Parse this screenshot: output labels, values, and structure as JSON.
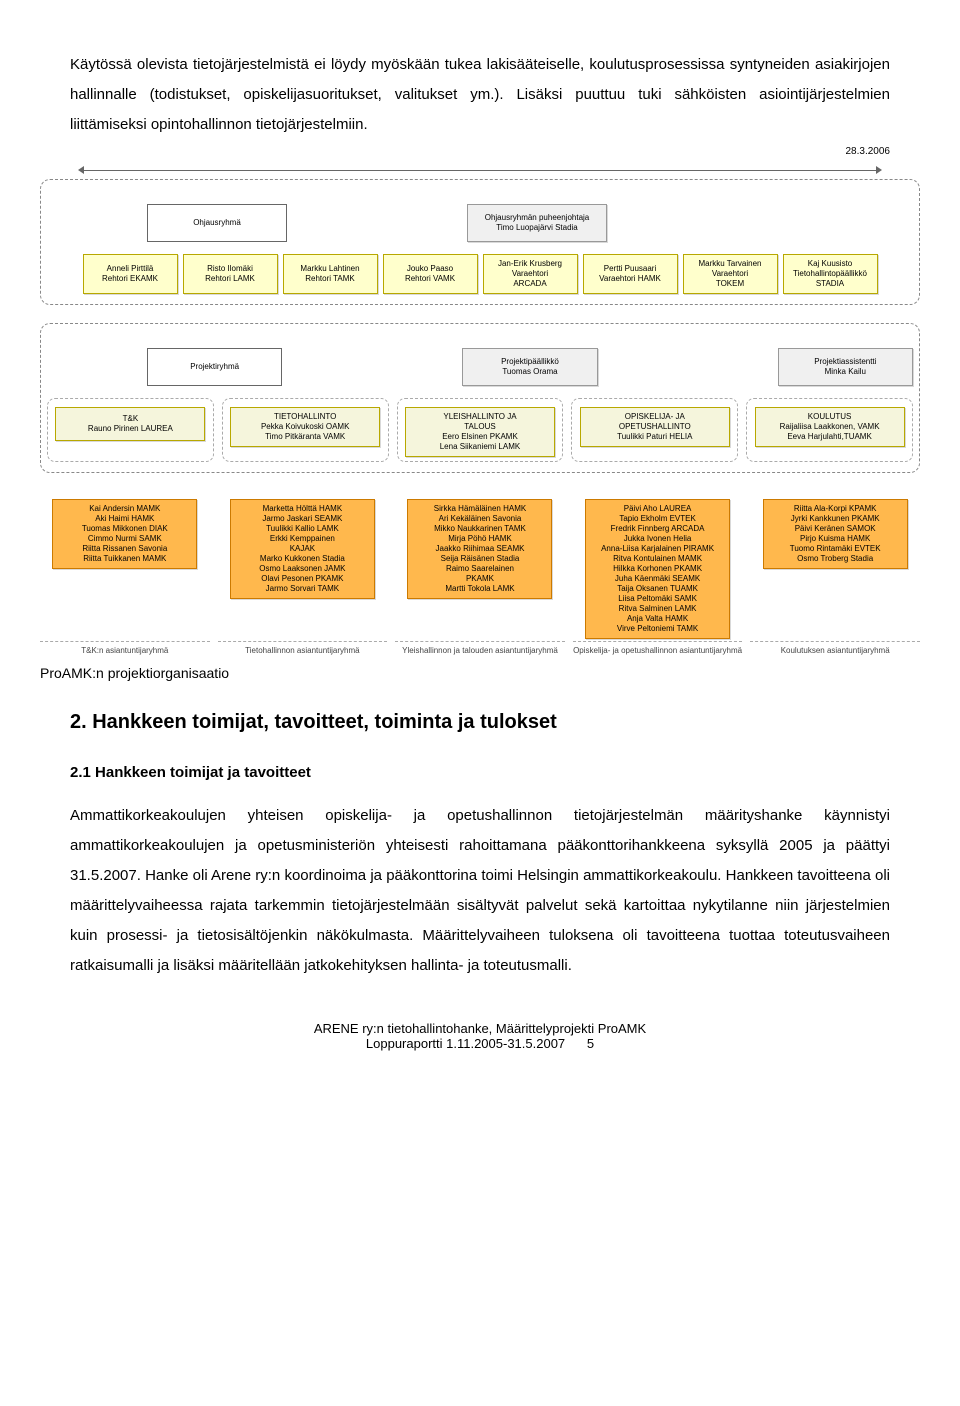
{
  "intro": {
    "p1": "Käytössä olevista tietojärjestelmistä ei löydy myöskään tukea lakisääteiselle, koulutusprosessissa syntyneiden asiakirjojen hallinnalle (todistukset, opiskelijasuoritukset, valitukset ym.). Lisäksi puuttuu tuki sähköisten asiointijärjestelmien liittämiseksi opintohallinnon tietojärjestelmiin.",
    "date": "28.3.2006"
  },
  "chart": {
    "colors": {
      "yellow_bg": "#ffffcc",
      "beige_bg": "#f5f5dc",
      "orange_bg": "#ffb84d",
      "grey_bg": "#f0f0f0"
    },
    "ohjausryhma_label": "Ohjausryhmä",
    "chair": [
      "Ohjausryhmän puheenjohtaja",
      "Timo Luopajärvi Stadia"
    ],
    "steering": [
      [
        "Anneli Pirttilä",
        "Rehtori EKAMK"
      ],
      [
        "Risto Ilomäki",
        "Rehtori LAMK"
      ],
      [
        "Markku Lahtinen",
        "Rehtori TAMK"
      ],
      [
        "Jouko Paaso",
        "Rehtori VAMK"
      ],
      [
        "Jan-Erik Krusberg",
        "Varaehtori",
        "ARCADA"
      ],
      [
        "Pertti Puusaari",
        "Varaehtori HAMK"
      ],
      [
        "Markku Tarvainen",
        "Varaehtori",
        "TOKEM"
      ],
      [
        "Kaj Kuusisto",
        "Tietohallintopäällikkö",
        "STADIA"
      ]
    ],
    "projektiryhma_label": "Projektiryhmä",
    "pm": [
      "Projektipäällikkö",
      "Tuomas Orama"
    ],
    "pa": [
      "Projektiassistentti",
      "Minka Kailu"
    ],
    "subgroups": [
      {
        "head": [
          "T&K",
          "Rauno Pirinen LAUREA"
        ]
      },
      {
        "head": [
          "TIETOHALLINTO",
          "Pekka Koivukoski OAMK",
          "Timo Pitkäranta VAMK"
        ]
      },
      {
        "head": [
          "YLEISHALLINTO JA",
          "TALOUS",
          "Eero Elsinen PKAMK",
          "Lena Siikaniemi LAMK"
        ]
      },
      {
        "head": [
          "OPISKELIJA- JA",
          "OPETUSHALLINTO",
          "Tuulikki Paturi HELIA"
        ]
      },
      {
        "head": [
          "KOULUTUS",
          "Raijaliisa Laakkonen, VAMK",
          "Eeva Harjulahti,TUAMK"
        ]
      }
    ],
    "experts": [
      [
        "Kai Andersin MAMK",
        "Aki Haimi HAMK",
        "Tuomas Mikkonen DIAK",
        "Cimmo Nurmi SAMK",
        "Riitta Rissanen Savonia",
        "Riitta Tuikkanen MAMK"
      ],
      [
        "Marketta Hölttä HAMK",
        "Jarmo Jaskari SEAMK",
        "Tuulikki Kallio LAMK",
        "Erkki Kemppainen",
        "KAJAK",
        "Marko Kukkonen Stadia",
        "Osmo Laaksonen JAMK",
        "Olavi Pesonen PKAMK",
        "Jarmo Sorvari TAMK"
      ],
      [
        "Sirkka Hämäläinen HAMK",
        "Ari Kekäläinen Savonia",
        "Mikko Naukkarinen TAMK",
        "Mirja Pöhö HAMK",
        "Jaakko Riihimaa SEAMK",
        "Seija Räisänen Stadia",
        "Raimo Saarelainen",
        "PKAMK",
        "Martti Tokola LAMK"
      ],
      [
        "Päivi Aho LAUREA",
        "Tapio Ekholm EVTEK",
        "Fredrik Finnberg ARCADA",
        "Jukka Ivonen Helia",
        "Anna-Liisa Karjalainen PIRAMK",
        "Ritva Kontulainen MAMK",
        "Hilkka Korhonen PKAMK",
        "Juha Käenmäki SEAMK",
        "Taija Oksanen TUAMK",
        "Liisa Peltomäki SAMK",
        "Ritva Salminen LAMK",
        "Anja Valta HAMK",
        "Virve Peltoniemi TAMK"
      ],
      [
        "Riitta Ala-Korpi KPAMK",
        "Jyrki Kankkunen PKAMK",
        "Päivi Keränen SAMOK",
        "Pirjo Kuisma HAMK",
        "Tuomo Rintamäki EVTEK",
        "Osmo Troberg Stadia"
      ]
    ],
    "expert_labels": [
      "T&K:n asiantuntijaryhmä",
      "Tietohallinnon asiantuntijaryhmä",
      "Yleishallinnon ja talouden asiantuntijaryhmä",
      "Opiskelija- ja opetushallinnon asiantuntijaryhmä",
      "Koulutuksen asiantuntijaryhmä"
    ],
    "caption": "ProAMK:n projektiorganisaatio"
  },
  "section2": {
    "title": "2. Hankkeen toimijat, tavoitteet, toiminta ja tulokset",
    "sub1": "2.1 Hankkeen toimijat ja tavoitteet",
    "p1": "Ammattikorkeakoulujen yhteisen opiskelija- ja opetushallinnon tietojärjestelmän määrityshanke käynnistyi ammattikorkeakoulujen ja opetusministeriön yhteisesti rahoittamana pääkonttorihankkeena syksyllä 2005 ja päättyi 31.5.2007. Hanke oli Arene ry:n koordinoima ja pääkonttorina toimi Helsingin ammattikorkeakoulu. Hankkeen tavoitteena oli määrittelyvaiheessa rajata tarkemmin tietojärjestelmään sisältyvät palvelut sekä kartoittaa nykytilanne niin järjestelmien kuin prosessi- ja tietosisältöjenkin näkökulmasta. Määrittelyvaiheen tuloksena oli tavoitteena tuottaa toteutusvaiheen ratkaisumalli ja lisäksi määritellään jatkokehityksen hallinta- ja toteutusmalli."
  },
  "footer": {
    "l1": "ARENE ry:n tietohallintohanke, Määrittelyprojekti ProAMK",
    "l2": "Loppuraportti 1.11.2005-31.5.2007",
    "page": "5"
  }
}
